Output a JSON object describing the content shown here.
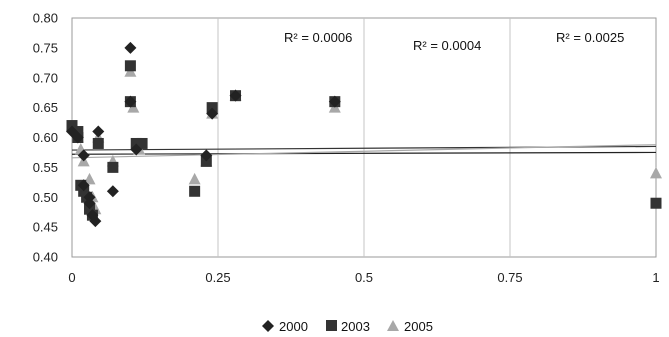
{
  "chart_data": {
    "type": "scatter",
    "title": "",
    "xlabel": "",
    "ylabel": "",
    "xlim": [
      0,
      1
    ],
    "ylim": [
      0.4,
      0.8
    ],
    "x_ticks": [
      0,
      0.25,
      0.5,
      0.75,
      1
    ],
    "x_tick_labels": [
      "0",
      "0.25",
      "0.5",
      "0.75",
      "1"
    ],
    "y_ticks": [
      0.4,
      0.45,
      0.5,
      0.55,
      0.6,
      0.65,
      0.7,
      0.75,
      0.8
    ],
    "y_tick_labels": [
      "0.40",
      "0.45",
      "0.50",
      "0.55",
      "0.60",
      "0.65",
      "0.70",
      "0.75",
      "0.80"
    ],
    "grid": "vertical",
    "legend_position": "bottom",
    "annotations": [
      "R² = 0.0006",
      "R² = 0.0004",
      "R² = 0.0025"
    ],
    "series": [
      {
        "name": "2000",
        "marker": "diamond",
        "color": "#222222",
        "trend": [
          0.572,
          0.575
        ],
        "points": [
          [
            0.0,
            0.61
          ],
          [
            0.01,
            0.6
          ],
          [
            0.02,
            0.57
          ],
          [
            0.02,
            0.52
          ],
          [
            0.03,
            0.5
          ],
          [
            0.03,
            0.49
          ],
          [
            0.035,
            0.47
          ],
          [
            0.04,
            0.46
          ],
          [
            0.045,
            0.61
          ],
          [
            0.07,
            0.51
          ],
          [
            0.1,
            0.75
          ],
          [
            0.1,
            0.66
          ],
          [
            0.11,
            0.58
          ],
          [
            0.23,
            0.57
          ],
          [
            0.24,
            0.64
          ],
          [
            0.28,
            0.67
          ],
          [
            0.45,
            0.66
          ]
        ]
      },
      {
        "name": "2003",
        "marker": "square",
        "color": "#333333",
        "trend": [
          0.579,
          0.585
        ],
        "points": [
          [
            0.0,
            0.62
          ],
          [
            0.01,
            0.61
          ],
          [
            0.01,
            0.6
          ],
          [
            0.015,
            0.52
          ],
          [
            0.02,
            0.51
          ],
          [
            0.025,
            0.5
          ],
          [
            0.03,
            0.48
          ],
          [
            0.035,
            0.47
          ],
          [
            0.045,
            0.59
          ],
          [
            0.07,
            0.55
          ],
          [
            0.1,
            0.72
          ],
          [
            0.1,
            0.66
          ],
          [
            0.11,
            0.59
          ],
          [
            0.12,
            0.59
          ],
          [
            0.21,
            0.51
          ],
          [
            0.23,
            0.56
          ],
          [
            0.24,
            0.65
          ],
          [
            0.28,
            0.67
          ],
          [
            0.45,
            0.66
          ],
          [
            1.0,
            0.49
          ]
        ]
      },
      {
        "name": "2005",
        "marker": "triangle",
        "color": "#a8a8a8",
        "trend": [
          0.566,
          0.588
        ],
        "points": [
          [
            0.0,
            0.62
          ],
          [
            0.01,
            0.6
          ],
          [
            0.015,
            0.58
          ],
          [
            0.02,
            0.56
          ],
          [
            0.03,
            0.53
          ],
          [
            0.035,
            0.5
          ],
          [
            0.04,
            0.48
          ],
          [
            0.045,
            0.6
          ],
          [
            0.07,
            0.56
          ],
          [
            0.1,
            0.71
          ],
          [
            0.105,
            0.65
          ],
          [
            0.115,
            0.58
          ],
          [
            0.21,
            0.53
          ],
          [
            0.23,
            0.56
          ],
          [
            0.24,
            0.64
          ],
          [
            0.28,
            0.67
          ],
          [
            0.45,
            0.65
          ],
          [
            1.0,
            0.54
          ]
        ]
      }
    ]
  }
}
